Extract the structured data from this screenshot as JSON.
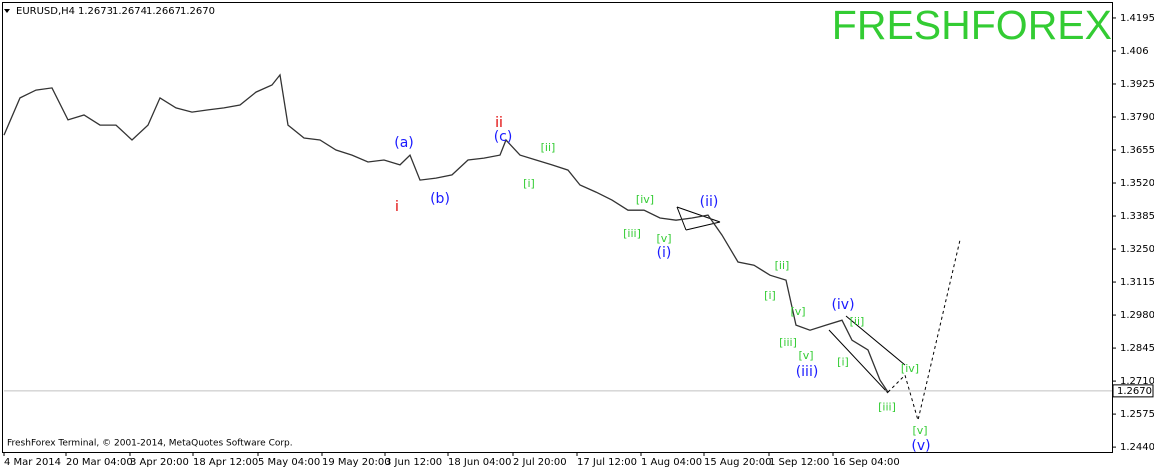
{
  "chart_data": {
    "type": "line",
    "header": {
      "symbol": "EURUSD,H4",
      "open": 1.2673,
      "high": 1.2674,
      "low": 1.2667,
      "close": {
        "value": 1.267,
        "label": "1.2670"
      }
    },
    "watermark": "FRESHFOREX",
    "footer": "FreshForex Terminal, © 2001-2014, MetaQuotes Software Corp.",
    "color": "#333333",
    "x": [
      0,
      16,
      32,
      48,
      64,
      80,
      96,
      112,
      128,
      144,
      156,
      172,
      188,
      204,
      220,
      236,
      252,
      268,
      276,
      284,
      300,
      316,
      332,
      348,
      364,
      380,
      396,
      406,
      416,
      432,
      448,
      464,
      480,
      496,
      502,
      516,
      532,
      548,
      564,
      576,
      592,
      608,
      624,
      640,
      656,
      672,
      688,
      704,
      718,
      734,
      750,
      766,
      782,
      792,
      806,
      822,
      838,
      848,
      864,
      876,
      884
    ],
    "values": [
      1.3716,
      1.3868,
      1.39,
      1.3909,
      1.3778,
      1.3798,
      1.3757,
      1.3757,
      1.3696,
      1.3757,
      1.3868,
      1.3827,
      1.381,
      1.3819,
      1.3827,
      1.3839,
      1.3892,
      1.3921,
      1.3962,
      1.3757,
      1.3704,
      1.3696,
      1.3655,
      1.3634,
      1.3606,
      1.3614,
      1.3594,
      1.3634,
      1.3532,
      1.354,
      1.3553,
      1.3614,
      1.3622,
      1.3634,
      1.3696,
      1.3634,
      1.3614,
      1.3594,
      1.3573,
      1.3512,
      1.3483,
      1.345,
      1.3409,
      1.3409,
      1.3377,
      1.3368,
      1.3377,
      1.3389,
      1.3307,
      1.3197,
      1.3184,
      1.3143,
      1.3123,
      1.2939,
      1.2918,
      1.2939,
      1.2959,
      1.2877,
      1.2837,
      1.2714,
      1.2665
    ],
    "projection": {
      "x": [
        884,
        901,
        914,
        956
      ],
      "values": [
        1.2665,
        1.2734,
        1.255,
        1.3287
      ]
    },
    "current_price": {
      "value": 1.267,
      "label": "1.2670"
    },
    "xlim": [
      0,
      1108
    ],
    "ylim": [
      1.242,
      1.4248
    ],
    "xticks": [
      {
        "value": 0,
        "label": "4 Mar 2014"
      },
      {
        "value": 62,
        "label": "20 Mar 04:00"
      },
      {
        "value": 126,
        "label": "3 Apr 20:00"
      },
      {
        "value": 189,
        "label": "18 Apr 12:00"
      },
      {
        "value": 254,
        "label": "5 May 04:00"
      },
      {
        "value": 318,
        "label": "19 May 20:00"
      },
      {
        "value": 381,
        "label": "3 Jun 12:00"
      },
      {
        "value": 444,
        "label": "18 Jun 04:00"
      },
      {
        "value": 509,
        "label": "2 Jul 20:00"
      },
      {
        "value": 573,
        "label": "17 Jul 12:00"
      },
      {
        "value": 637,
        "label": "1 Aug 04:00"
      },
      {
        "value": 700,
        "label": "15 Aug 20:00"
      },
      {
        "value": 765,
        "label": "1 Sep 12:00"
      },
      {
        "value": 829,
        "label": "16 Sep 04:00"
      }
    ],
    "yticks": [
      1.4195,
      1.406,
      1.3925,
      {
        "value": 1.379,
        "label": "1.3790"
      },
      1.3655,
      {
        "value": 1.352,
        "label": "1.3520"
      },
      1.3385,
      {
        "value": 1.325,
        "label": "1.3250"
      },
      1.3115,
      {
        "value": 1.298,
        "label": "1.2980"
      },
      1.2845,
      {
        "value": 1.271,
        "label": "1.2710"
      },
      1.2575,
      {
        "value": 1.244,
        "label": "1.2440"
      }
    ],
    "annotations": [
      {
        "text": "(a)",
        "x": 400,
        "y": 1.3684,
        "color": "#1a1aff"
      },
      {
        "text": "i",
        "x": 393,
        "y": 1.3422,
        "color": "#e00000"
      },
      {
        "text": "(b)",
        "x": 436,
        "y": 1.3454,
        "color": "#1a1aff"
      },
      {
        "text": "ii",
        "x": 495,
        "y": 1.3765,
        "color": "#e00000"
      },
      {
        "text": "(c)",
        "x": 499,
        "y": 1.3708,
        "color": "#1a1aff"
      },
      {
        "text": "[ii]",
        "x": 544,
        "y": 1.3663,
        "color": "#33cc33"
      },
      {
        "text": "[i]",
        "x": 525,
        "y": 1.3516,
        "color": "#33cc33"
      },
      {
        "text": "[iv]",
        "x": 641,
        "y": 1.345,
        "color": "#33cc33"
      },
      {
        "text": "[iii]",
        "x": 628,
        "y": 1.3311,
        "color": "#33cc33"
      },
      {
        "text": "[v]",
        "x": 660,
        "y": 1.3291,
        "color": "#33cc33"
      },
      {
        "text": "(i)",
        "x": 660,
        "y": 1.3233,
        "color": "#1a1aff"
      },
      {
        "text": "(ii)",
        "x": 705,
        "y": 1.3442,
        "color": "#1a1aff"
      },
      {
        "text": "[ii]",
        "x": 778,
        "y": 1.318,
        "color": "#33cc33"
      },
      {
        "text": "[i]",
        "x": 766,
        "y": 1.3057,
        "color": "#33cc33"
      },
      {
        "text": "(iv)",
        "x": 839,
        "y": 1.3021,
        "color": "#1a1aff"
      },
      {
        "text": "[ii]",
        "x": 853,
        "y": 1.2951,
        "color": "#33cc33"
      },
      {
        "text": "[v]",
        "x": 794,
        "y": 1.2992,
        "color": "#33cc33"
      },
      {
        "text": "[iii]",
        "x": 784,
        "y": 1.2865,
        "color": "#33cc33"
      },
      {
        "text": "[v]",
        "x": 802,
        "y": 1.2812,
        "color": "#33cc33"
      },
      {
        "text": "(iii)",
        "x": 803,
        "y": 1.2747,
        "color": "#1a1aff"
      },
      {
        "text": "[i]",
        "x": 839,
        "y": 1.2787,
        "color": "#33cc33"
      },
      {
        "text": "[iv]",
        "x": 906,
        "y": 1.2759,
        "color": "#33cc33"
      },
      {
        "text": "[iii]",
        "x": 883,
        "y": 1.2603,
        "color": "#33cc33"
      },
      {
        "text": "[v]",
        "x": 916,
        "y": 1.2505,
        "color": "#33cc33"
      },
      {
        "text": "(v)",
        "x": 917,
        "y": 1.2444,
        "color": "#1a1aff"
      }
    ]
  }
}
